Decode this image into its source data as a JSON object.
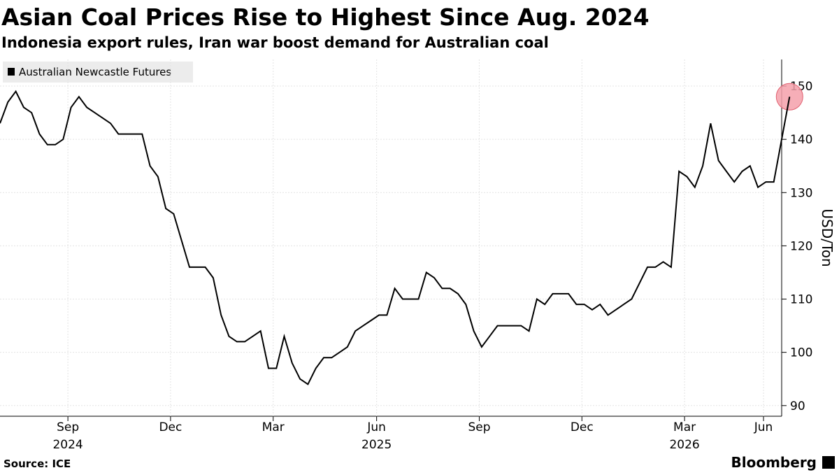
{
  "chart_data": {
    "type": "line",
    "title": "Asian Coal Prices Rise to Highest Since Aug. 2024",
    "subtitle": "Indonesia export rules, Iran war boost demand for Australian coal",
    "y_label": "USD/Ton",
    "source": "Source: ICE",
    "brand": "Bloomberg",
    "series": [
      {
        "name": "Australian Newcastle Futures",
        "color": "#000000",
        "values": [
          143,
          147,
          149,
          146,
          145,
          141,
          139,
          139,
          140,
          146,
          148,
          146,
          145,
          144,
          143,
          141,
          141,
          141,
          141,
          135,
          133,
          127,
          126,
          121,
          116,
          116,
          116,
          114,
          107,
          103,
          102,
          102,
          103,
          104,
          97,
          97,
          103,
          98,
          95,
          94,
          97,
          99,
          99,
          100,
          101,
          104,
          105,
          106,
          107,
          107,
          112,
          110,
          110,
          110,
          115,
          114,
          112,
          112,
          111,
          109,
          104,
          101,
          103,
          105,
          105,
          105,
          105,
          104,
          110,
          109,
          111,
          111,
          111,
          109,
          109,
          108,
          109,
          107,
          108,
          109,
          110,
          113,
          116,
          116,
          117,
          116,
          134,
          133,
          131,
          135,
          143,
          136,
          134,
          132,
          134,
          135,
          131,
          132,
          132,
          140,
          148
        ]
      }
    ],
    "xlim": [
      0,
      99
    ],
    "xticks": [
      {
        "value": 8.6,
        "label": "Sep"
      },
      {
        "value": 21.6,
        "label": "Dec"
      },
      {
        "value": 34.6,
        "label": "Mar"
      },
      {
        "value": 47.7,
        "label": "Jun"
      },
      {
        "value": 60.7,
        "label": "Sep"
      },
      {
        "value": 73.7,
        "label": "Dec"
      },
      {
        "value": 86.7,
        "label": "Mar"
      },
      {
        "value": 96.7,
        "label": "Jun"
      }
    ],
    "year_ticks": [
      {
        "value": 8.6,
        "label": "2024"
      },
      {
        "value": 47.7,
        "label": "2025"
      },
      {
        "value": 86.7,
        "label": "2026"
      }
    ],
    "ylim": [
      88,
      155
    ],
    "yticks": [
      90,
      100,
      110,
      120,
      130,
      140,
      150
    ],
    "grid": true,
    "highlight_color": "#f4a0aa"
  }
}
